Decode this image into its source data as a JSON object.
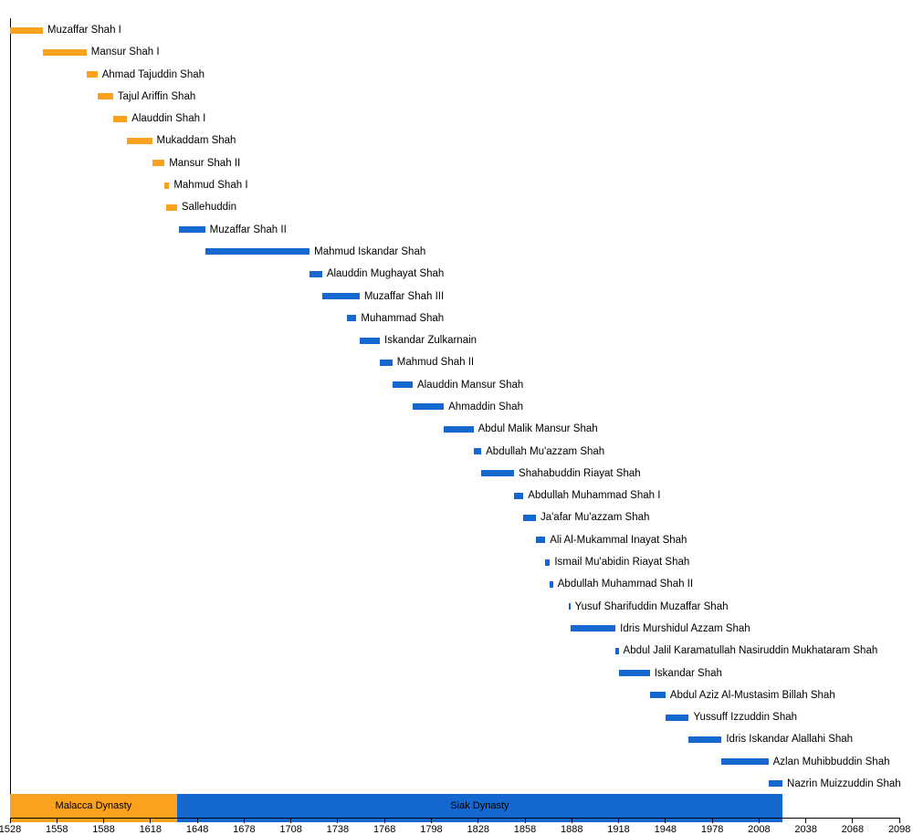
{
  "chart_data": {
    "type": "gantt",
    "title": "",
    "xlabel": "",
    "ylabel": "",
    "legend": "none",
    "grid": false,
    "axis": {
      "min": 1528,
      "max": 2098,
      "tick_step": 30,
      "ticks": [
        1528,
        1558,
        1588,
        1618,
        1648,
        1678,
        1708,
        1738,
        1768,
        1798,
        1828,
        1858,
        1888,
        1918,
        1948,
        1978,
        2008,
        2038,
        2068,
        2098
      ]
    },
    "dynasties": [
      {
        "name": "Malacca Dynasty",
        "start": 1528,
        "end": 1635,
        "color": "#FAA220"
      },
      {
        "name": "Siak Dynasty",
        "start": 1635,
        "end": 2023,
        "color": "#1468D0"
      }
    ],
    "rulers": [
      {
        "name": "Muzaffar Shah I",
        "start": 1528,
        "end": 1549,
        "dynasty": "Malacca Dynasty"
      },
      {
        "name": "Mansur Shah I",
        "start": 1549,
        "end": 1577,
        "dynasty": "Malacca Dynasty"
      },
      {
        "name": "Ahmad Tajuddin Shah",
        "start": 1577,
        "end": 1584,
        "dynasty": "Malacca Dynasty"
      },
      {
        "name": "Tajul Ariffin Shah",
        "start": 1584,
        "end": 1594,
        "dynasty": "Malacca Dynasty"
      },
      {
        "name": "Alauddin Shah I",
        "start": 1594,
        "end": 1603,
        "dynasty": "Malacca Dynasty"
      },
      {
        "name": "Mukaddam Shah",
        "start": 1603,
        "end": 1619,
        "dynasty": "Malacca Dynasty"
      },
      {
        "name": "Mansur Shah II",
        "start": 1619,
        "end": 1627,
        "dynasty": "Malacca Dynasty"
      },
      {
        "name": "Mahmud Shah I",
        "start": 1627,
        "end": 1630,
        "dynasty": "Malacca Dynasty"
      },
      {
        "name": "Sallehuddin",
        "start": 1628,
        "end": 1635,
        "dynasty": "Malacca Dynasty"
      },
      {
        "name": "Muzaffar Shah II",
        "start": 1636,
        "end": 1653,
        "dynasty": "Siak Dynasty"
      },
      {
        "name": "Mahmud Iskandar Shah",
        "start": 1653,
        "end": 1720,
        "dynasty": "Siak Dynasty"
      },
      {
        "name": "Alauddin Mughayat Shah",
        "start": 1720,
        "end": 1728,
        "dynasty": "Siak Dynasty"
      },
      {
        "name": "Muzaffar Shah III",
        "start": 1728,
        "end": 1752,
        "dynasty": "Siak Dynasty"
      },
      {
        "name": "Muhammad Shah",
        "start": 1744,
        "end": 1750,
        "dynasty": "Siak Dynasty"
      },
      {
        "name": "Iskandar Zulkarnain",
        "start": 1752,
        "end": 1765,
        "dynasty": "Siak Dynasty"
      },
      {
        "name": "Mahmud Shah II",
        "start": 1765,
        "end": 1773,
        "dynasty": "Siak Dynasty"
      },
      {
        "name": "Alauddin Mansur Shah",
        "start": 1773,
        "end": 1786,
        "dynasty": "Siak Dynasty"
      },
      {
        "name": "Ahmaddin Shah",
        "start": 1786,
        "end": 1806,
        "dynasty": "Siak Dynasty"
      },
      {
        "name": "Abdul Malik Mansur Shah",
        "start": 1806,
        "end": 1825,
        "dynasty": "Siak Dynasty"
      },
      {
        "name": "Abdullah Mu'azzam Shah",
        "start": 1825,
        "end": 1830,
        "dynasty": "Siak Dynasty"
      },
      {
        "name": "Shahabuddin Riayat Shah",
        "start": 1830,
        "end": 1851,
        "dynasty": "Siak Dynasty"
      },
      {
        "name": "Abdullah Muhammad Shah I",
        "start": 1851,
        "end": 1857,
        "dynasty": "Siak Dynasty"
      },
      {
        "name": "Ja'afar Mu'azzam Shah",
        "start": 1857,
        "end": 1865,
        "dynasty": "Siak Dynasty"
      },
      {
        "name": "Ali Al-Mukammal Inayat Shah",
        "start": 1865,
        "end": 1871,
        "dynasty": "Siak Dynasty"
      },
      {
        "name": "Ismail Mu'abidin Riayat Shah",
        "start": 1871,
        "end": 1874,
        "dynasty": "Siak Dynasty"
      },
      {
        "name": "Abdullah Muhammad Shah II",
        "start": 1874,
        "end": 1876,
        "dynasty": "Siak Dynasty"
      },
      {
        "name": "Yusuf Sharifuddin Muzaffar Shah",
        "start": 1886,
        "end": 1887,
        "dynasty": "Siak Dynasty"
      },
      {
        "name": "Idris Murshidul Azzam Shah",
        "start": 1887,
        "end": 1916,
        "dynasty": "Siak Dynasty"
      },
      {
        "name": "Abdul Jalil Karamatullah Nasiruddin Mukhataram Shah",
        "start": 1916,
        "end": 1918,
        "dynasty": "Siak Dynasty"
      },
      {
        "name": "Iskandar Shah",
        "start": 1918,
        "end": 1938,
        "dynasty": "Siak Dynasty"
      },
      {
        "name": "Abdul Aziz Al-Mustasim Billah Shah",
        "start": 1938,
        "end": 1948,
        "dynasty": "Siak Dynasty"
      },
      {
        "name": "Yussuff Izzuddin Shah",
        "start": 1948,
        "end": 1963,
        "dynasty": "Siak Dynasty"
      },
      {
        "name": "Idris Iskandar Alallahi Shah",
        "start": 1963,
        "end": 1984,
        "dynasty": "Siak Dynasty"
      },
      {
        "name": "Azlan Muhibbuddin Shah",
        "start": 1984,
        "end": 2014,
        "dynasty": "Siak Dynasty"
      },
      {
        "name": "Nazrin Muizzuddin Shah",
        "start": 2014,
        "end": 2023,
        "dynasty": "Siak Dynasty"
      }
    ]
  },
  "colors": {
    "malacca_orange": "#FAA220",
    "siak_blue": "#1468D0",
    "axis_black": "#000000",
    "text_black": "#000000",
    "background": "#FFFFFF"
  }
}
